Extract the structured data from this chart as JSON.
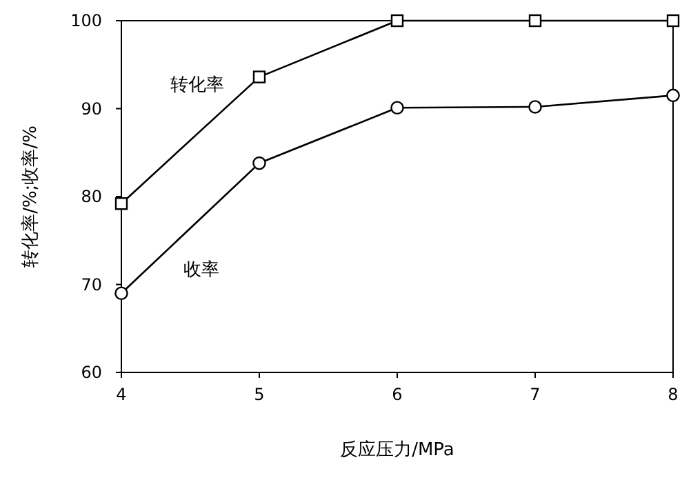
{
  "chart_data": {
    "type": "line",
    "xlabel": "反应压力/MPa",
    "ylabel": "转化率/%;收率/%",
    "x": [
      4,
      5,
      6,
      7,
      8
    ],
    "series": [
      {
        "name": "转化率",
        "color": "#000000",
        "marker": "square",
        "values": [
          79.2,
          93.6,
          100,
          100,
          100
        ]
      },
      {
        "name": "收率",
        "color": "#000000",
        "marker": "circle",
        "values": [
          69,
          83.8,
          90.1,
          90.2,
          91.5
        ]
      }
    ],
    "xlim": [
      4,
      8
    ],
    "xticks": [
      4,
      5,
      6,
      7,
      8
    ],
    "ylim": [
      60,
      100
    ],
    "yticks": [
      60,
      70,
      80,
      90,
      100
    ],
    "grid": false
  }
}
